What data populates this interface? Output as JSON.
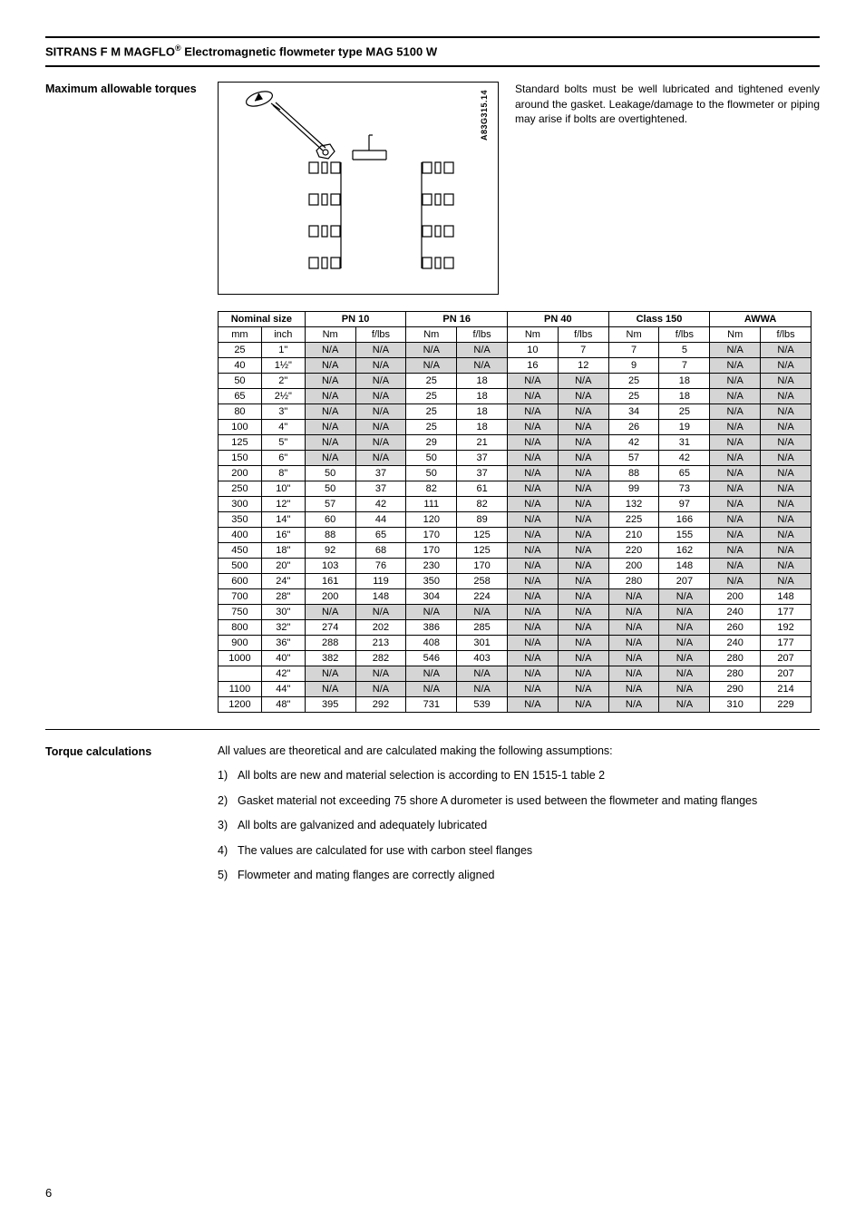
{
  "document": {
    "title_prefix": "SITRANS F M MAGFLO",
    "registered": "®",
    "title_suffix": " Electromagnetic flowmeter type MAG 5100 W",
    "page_number": "6"
  },
  "section1": {
    "heading": "Maximum allowable torques",
    "diagram_label": "A83G315.14",
    "note_text": "Standard bolts must be well lubricated and tightened evenly around the gasket. Leakage/damage to the flowmeter or piping may arise if bolts are overtightened."
  },
  "table": {
    "col_groups": [
      "Nominal size",
      "PN 10",
      "PN 16",
      "PN 40",
      "Class 150",
      "AWWA"
    ],
    "sub_units": [
      "mm",
      "inch",
      "Nm",
      "f/lbs",
      "Nm",
      "f/lbs",
      "Nm",
      "f/lbs",
      "Nm",
      "f/lbs",
      "Nm",
      "f/lbs"
    ],
    "rows": [
      [
        "25",
        "1\"",
        "N/A",
        "N/A",
        "N/A",
        "N/A",
        "10",
        "7",
        "7",
        "5",
        "N/A",
        "N/A"
      ],
      [
        "40",
        "1½\"",
        "N/A",
        "N/A",
        "N/A",
        "N/A",
        "16",
        "12",
        "9",
        "7",
        "N/A",
        "N/A"
      ],
      [
        "50",
        "2\"",
        "N/A",
        "N/A",
        "25",
        "18",
        "N/A",
        "N/A",
        "25",
        "18",
        "N/A",
        "N/A"
      ],
      [
        "65",
        "2½\"",
        "N/A",
        "N/A",
        "25",
        "18",
        "N/A",
        "N/A",
        "25",
        "18",
        "N/A",
        "N/A"
      ],
      [
        "80",
        "3\"",
        "N/A",
        "N/A",
        "25",
        "18",
        "N/A",
        "N/A",
        "34",
        "25",
        "N/A",
        "N/A"
      ],
      [
        "100",
        "4\"",
        "N/A",
        "N/A",
        "25",
        "18",
        "N/A",
        "N/A",
        "26",
        "19",
        "N/A",
        "N/A"
      ],
      [
        "125",
        "5\"",
        "N/A",
        "N/A",
        "29",
        "21",
        "N/A",
        "N/A",
        "42",
        "31",
        "N/A",
        "N/A"
      ],
      [
        "150",
        "6\"",
        "N/A",
        "N/A",
        "50",
        "37",
        "N/A",
        "N/A",
        "57",
        "42",
        "N/A",
        "N/A"
      ],
      [
        "200",
        "8\"",
        "50",
        "37",
        "50",
        "37",
        "N/A",
        "N/A",
        "88",
        "65",
        "N/A",
        "N/A"
      ],
      [
        "250",
        "10\"",
        "50",
        "37",
        "82",
        "61",
        "N/A",
        "N/A",
        "99",
        "73",
        "N/A",
        "N/A"
      ],
      [
        "300",
        "12\"",
        "57",
        "42",
        "111",
        "82",
        "N/A",
        "N/A",
        "132",
        "97",
        "N/A",
        "N/A"
      ],
      [
        "350",
        "14\"",
        "60",
        "44",
        "120",
        "89",
        "N/A",
        "N/A",
        "225",
        "166",
        "N/A",
        "N/A"
      ],
      [
        "400",
        "16\"",
        "88",
        "65",
        "170",
        "125",
        "N/A",
        "N/A",
        "210",
        "155",
        "N/A",
        "N/A"
      ],
      [
        "450",
        "18\"",
        "92",
        "68",
        "170",
        "125",
        "N/A",
        "N/A",
        "220",
        "162",
        "N/A",
        "N/A"
      ],
      [
        "500",
        "20\"",
        "103",
        "76",
        "230",
        "170",
        "N/A",
        "N/A",
        "200",
        "148",
        "N/A",
        "N/A"
      ],
      [
        "600",
        "24\"",
        "161",
        "119",
        "350",
        "258",
        "N/A",
        "N/A",
        "280",
        "207",
        "N/A",
        "N/A"
      ],
      [
        "700",
        "28\"",
        "200",
        "148",
        "304",
        "224",
        "N/A",
        "N/A",
        "N/A",
        "N/A",
        "200",
        "148"
      ],
      [
        "750",
        "30\"",
        "N/A",
        "N/A",
        "N/A",
        "N/A",
        "N/A",
        "N/A",
        "N/A",
        "N/A",
        "240",
        "177"
      ],
      [
        "800",
        "32\"",
        "274",
        "202",
        "386",
        "285",
        "N/A",
        "N/A",
        "N/A",
        "N/A",
        "260",
        "192"
      ],
      [
        "900",
        "36\"",
        "288",
        "213",
        "408",
        "301",
        "N/A",
        "N/A",
        "N/A",
        "N/A",
        "240",
        "177"
      ],
      [
        "1000",
        "40\"",
        "382",
        "282",
        "546",
        "403",
        "N/A",
        "N/A",
        "N/A",
        "N/A",
        "280",
        "207"
      ],
      [
        "",
        "42\"",
        "N/A",
        "N/A",
        "N/A",
        "N/A",
        "N/A",
        "N/A",
        "N/A",
        "N/A",
        "280",
        "207"
      ],
      [
        "1100",
        "44\"",
        "N/A",
        "N/A",
        "N/A",
        "N/A",
        "N/A",
        "N/A",
        "N/A",
        "N/A",
        "290",
        "214"
      ],
      [
        "1200",
        "48\"",
        "395",
        "292",
        "731",
        "539",
        "N/A",
        "N/A",
        "N/A",
        "N/A",
        "310",
        "229"
      ]
    ],
    "col_widths": [
      "48",
      "48",
      "56",
      "56",
      "56",
      "56",
      "56",
      "56",
      "56",
      "56",
      "56",
      "56"
    ]
  },
  "section2": {
    "heading": "Torque calculations",
    "intro": "All values are theoretical and are calculated making the following assumptions:",
    "items": [
      "All bolts are new and material selection is according to EN 1515-1 table 2",
      "Gasket material not exceeding 75 shore A durometer is used between the flowmeter and mating flanges",
      "All bolts are galvanized and adequately lubricated",
      "The values are calculated for use with carbon steel flanges",
      "Flowmeter and mating flanges are correctly aligned"
    ]
  }
}
